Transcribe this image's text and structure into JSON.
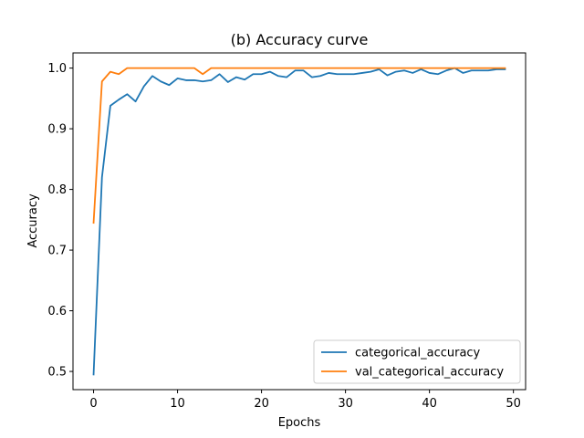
{
  "chart_data": {
    "type": "line",
    "title": "(b) Accuracy curve",
    "xlabel": "Epochs",
    "ylabel": "Accuracy",
    "xlim": [
      -2.45,
      51.45
    ],
    "ylim": [
      0.47,
      1.025
    ],
    "xticks": [
      0,
      10,
      20,
      30,
      40,
      50
    ],
    "yticks": [
      0.5,
      0.6,
      0.7,
      0.8,
      0.9,
      1.0
    ],
    "grid": false,
    "legend_position": "lower-right",
    "x": [
      0,
      1,
      2,
      3,
      4,
      5,
      6,
      7,
      8,
      9,
      10,
      11,
      12,
      13,
      14,
      15,
      16,
      17,
      18,
      19,
      20,
      21,
      22,
      23,
      24,
      25,
      26,
      27,
      28,
      29,
      30,
      31,
      32,
      33,
      34,
      35,
      36,
      37,
      38,
      39,
      40,
      41,
      42,
      43,
      44,
      45,
      46,
      47,
      48,
      49
    ],
    "series": [
      {
        "name": "categorical_accuracy",
        "color": "#1f77b4",
        "values": [
          0.495,
          0.82,
          0.938,
          0.948,
          0.957,
          0.945,
          0.97,
          0.987,
          0.978,
          0.972,
          0.983,
          0.98,
          0.98,
          0.978,
          0.98,
          0.99,
          0.977,
          0.985,
          0.981,
          0.99,
          0.99,
          0.994,
          0.987,
          0.985,
          0.996,
          0.996,
          0.985,
          0.987,
          0.992,
          0.99,
          0.99,
          0.99,
          0.992,
          0.994,
          0.998,
          0.988,
          0.994,
          0.996,
          0.992,
          0.998,
          0.992,
          0.99,
          0.996,
          1.0,
          0.992,
          0.996,
          0.996,
          0.996,
          0.998,
          0.998
        ]
      },
      {
        "name": "val_categorical_accuracy",
        "color": "#ff7f0e",
        "values": [
          0.745,
          0.978,
          0.994,
          0.99,
          1.0,
          1.0,
          1.0,
          1.0,
          1.0,
          1.0,
          1.0,
          1.0,
          1.0,
          0.99,
          1.0,
          1.0,
          1.0,
          1.0,
          1.0,
          1.0,
          1.0,
          1.0,
          1.0,
          1.0,
          1.0,
          1.0,
          1.0,
          1.0,
          1.0,
          1.0,
          1.0,
          1.0,
          1.0,
          1.0,
          1.0,
          1.0,
          1.0,
          1.0,
          1.0,
          1.0,
          1.0,
          1.0,
          1.0,
          1.0,
          1.0,
          1.0,
          1.0,
          1.0,
          1.0,
          1.0
        ]
      }
    ]
  }
}
